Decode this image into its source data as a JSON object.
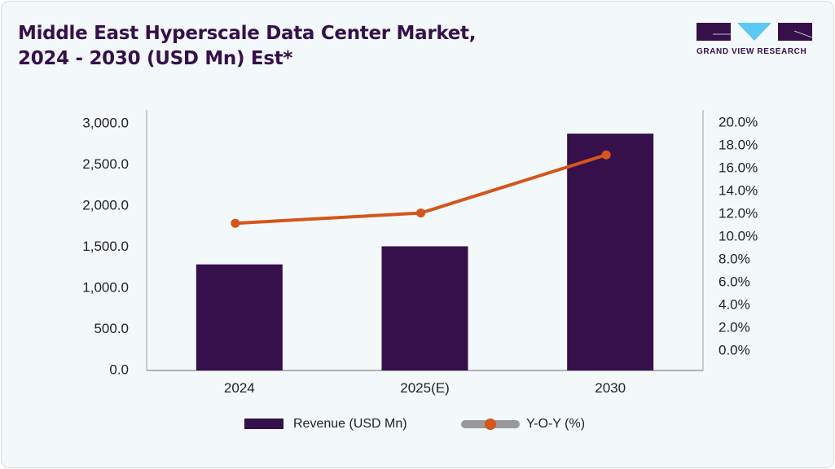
{
  "header": {
    "title_line1": "Middle East Hyperscale Data Center Market,",
    "title_line2": "2024 - 2030 (USD Mn) Est*",
    "logo_text": "GRAND VIEW RESEARCH"
  },
  "colors": {
    "bar": "#35104a",
    "line": "#d4561c",
    "legend_line": "#999999",
    "logo_accent": "#5bc8f5"
  },
  "chart_data": {
    "type": "bar",
    "title": "Middle East Hyperscale Data Center Market, 2024 - 2030 (USD Mn) Est*",
    "categories": [
      "2024",
      "2025(E)",
      "2030"
    ],
    "series": [
      {
        "name": "Revenue (USD Mn)",
        "type": "bar",
        "axis": "left",
        "values": [
          1290,
          1510,
          2880
        ]
      },
      {
        "name": "Y-O-Y (%)",
        "type": "line",
        "axis": "right",
        "values": [
          11.2,
          12.1,
          17.2
        ]
      }
    ],
    "left_axis": {
      "ylim": [
        0,
        3000
      ],
      "ticks": [
        "0.0",
        "500.0",
        "1,000.0",
        "1,500.0",
        "2,000.0",
        "2,500.0",
        "3,000.0"
      ]
    },
    "right_axis": {
      "ylim": [
        0,
        20
      ],
      "ticks": [
        "0.0%",
        "2.0%",
        "4.0%",
        "6.0%",
        "8.0%",
        "10.0%",
        "12.0%",
        "14.0%",
        "16.0%",
        "18.0%",
        "20.0%"
      ]
    },
    "legend": {
      "placement": "bottom",
      "entries": [
        "Revenue (USD Mn)",
        "Y-O-Y (%)"
      ]
    },
    "grid": false
  }
}
